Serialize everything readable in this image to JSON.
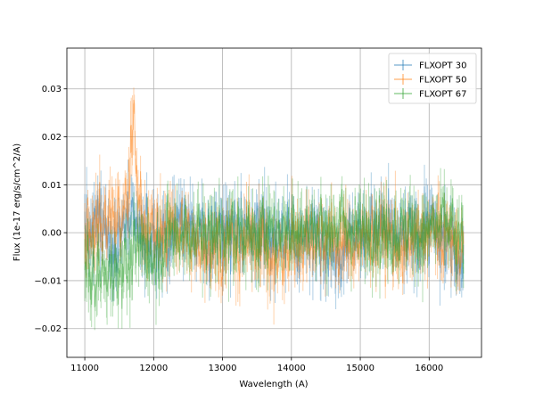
{
  "chart_data": {
    "type": "line",
    "title": "",
    "xlabel": "Wavelength (A)",
    "ylabel": "Flux (1e-17 erg/s/cm^2/A)",
    "xlim": [
      10740,
      16760
    ],
    "ylim": [
      -0.026,
      0.0385
    ],
    "xticks": [
      11000,
      12000,
      13000,
      14000,
      15000,
      16000
    ],
    "yticks": [
      -0.02,
      -0.01,
      0.0,
      0.01,
      0.02,
      0.03
    ],
    "ytick_labels": [
      "−0.02",
      "−0.01",
      "0.00",
      "0.01",
      "0.02",
      "0.03"
    ],
    "grid": true,
    "legend_position": "top-right",
    "x_range": [
      11000,
      16500
    ],
    "series": [
      {
        "name": "FLXOPT 30",
        "color": "#1f77b4",
        "anchors": [
          [
            11000,
            0.002
          ],
          [
            11100,
            -0.004
          ],
          [
            11200,
            0.003
          ],
          [
            11400,
            -0.003
          ],
          [
            11600,
            0.001
          ],
          [
            11800,
            0.0
          ],
          [
            12000,
            -0.002
          ],
          [
            12400,
            0.001
          ],
          [
            12800,
            -0.001
          ],
          [
            13200,
            0.001
          ],
          [
            13600,
            0.0
          ],
          [
            14000,
            -0.002
          ],
          [
            14400,
            0.0
          ],
          [
            14600,
            -0.006
          ],
          [
            14800,
            -0.001
          ],
          [
            15200,
            0.001
          ],
          [
            15600,
            -0.002
          ],
          [
            16000,
            0.001
          ],
          [
            16400,
            -0.004
          ],
          [
            16500,
            -0.006
          ]
        ],
        "noise": 0.006
      },
      {
        "name": "FLXOPT 50",
        "color": "#ff7f0e",
        "anchors": [
          [
            11000,
            0.001
          ],
          [
            11200,
            0.002
          ],
          [
            11400,
            0.004
          ],
          [
            11550,
            0.002
          ],
          [
            11650,
            0.01
          ],
          [
            11700,
            0.027
          ],
          [
            11750,
            0.012
          ],
          [
            11850,
            0.003
          ],
          [
            12000,
            0.0
          ],
          [
            12400,
            0.0
          ],
          [
            12800,
            -0.003
          ],
          [
            13200,
            -0.002
          ],
          [
            13600,
            -0.002
          ],
          [
            13800,
            -0.007
          ],
          [
            14000,
            -0.003
          ],
          [
            14400,
            0.0
          ],
          [
            14800,
            -0.003
          ],
          [
            15200,
            -0.001
          ],
          [
            15600,
            -0.003
          ],
          [
            16000,
            0.001
          ],
          [
            16500,
            -0.003
          ]
        ],
        "noise": 0.006
      },
      {
        "name": "FLXOPT 67",
        "color": "#2ca02c",
        "anchors": [
          [
            11000,
            -0.008
          ],
          [
            11200,
            -0.01
          ],
          [
            11400,
            -0.008
          ],
          [
            11600,
            -0.007
          ],
          [
            11800,
            -0.003
          ],
          [
            12000,
            -0.006
          ],
          [
            12200,
            -0.001
          ],
          [
            12600,
            0.0
          ],
          [
            13000,
            0.0
          ],
          [
            13400,
            -0.001
          ],
          [
            13800,
            0.001
          ],
          [
            14200,
            0.0
          ],
          [
            14600,
            0.002
          ],
          [
            15000,
            0.001
          ],
          [
            15400,
            0.0
          ],
          [
            15800,
            0.0
          ],
          [
            16200,
            0.002
          ],
          [
            16500,
            -0.002
          ]
        ],
        "noise": 0.006
      }
    ]
  }
}
